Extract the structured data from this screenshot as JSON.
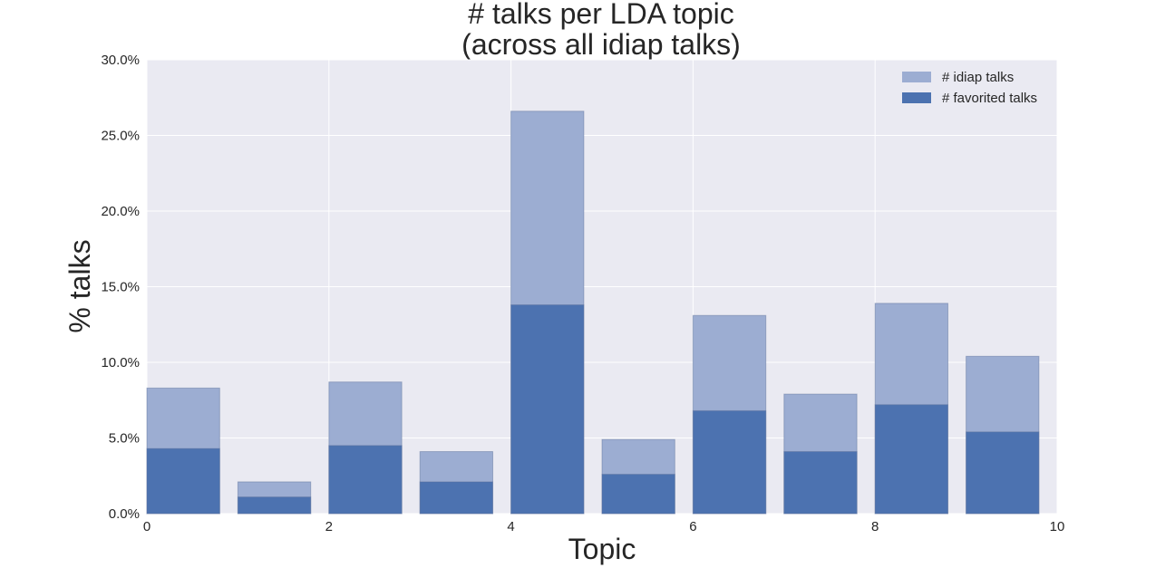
{
  "chart_data": {
    "type": "bar",
    "title_line1": "# talks per LDA topic",
    "title_line2": "(across all idiap talks)",
    "xlabel": "Topic",
    "ylabel": "% talks",
    "xlim": [
      0,
      10
    ],
    "ylim": [
      0,
      30
    ],
    "x_ticks": [
      "0",
      "2",
      "4",
      "6",
      "8",
      "10"
    ],
    "y_ticks": [
      "0.0%",
      "5.0%",
      "10.0%",
      "15.0%",
      "20.0%",
      "25.0%",
      "30.0%"
    ],
    "grid": true,
    "legend_position": "top-right",
    "bar_width": 0.8,
    "categories": [
      0,
      1,
      2,
      3,
      4,
      5,
      6,
      7,
      8,
      9
    ],
    "series": [
      {
        "name": "# idiap talks",
        "color": "#9cadd2",
        "values": [
          8.3,
          2.1,
          8.7,
          4.1,
          26.6,
          4.9,
          13.1,
          7.9,
          13.9,
          10.4
        ]
      },
      {
        "name": "# favorited talks",
        "color": "#4c72b0",
        "values": [
          4.3,
          1.1,
          4.5,
          2.1,
          13.8,
          2.6,
          6.8,
          4.1,
          7.2,
          5.4
        ]
      }
    ],
    "colors": {
      "plot_background": "#eaeaf2",
      "grid": "#ffffff",
      "text": "#262626"
    }
  }
}
